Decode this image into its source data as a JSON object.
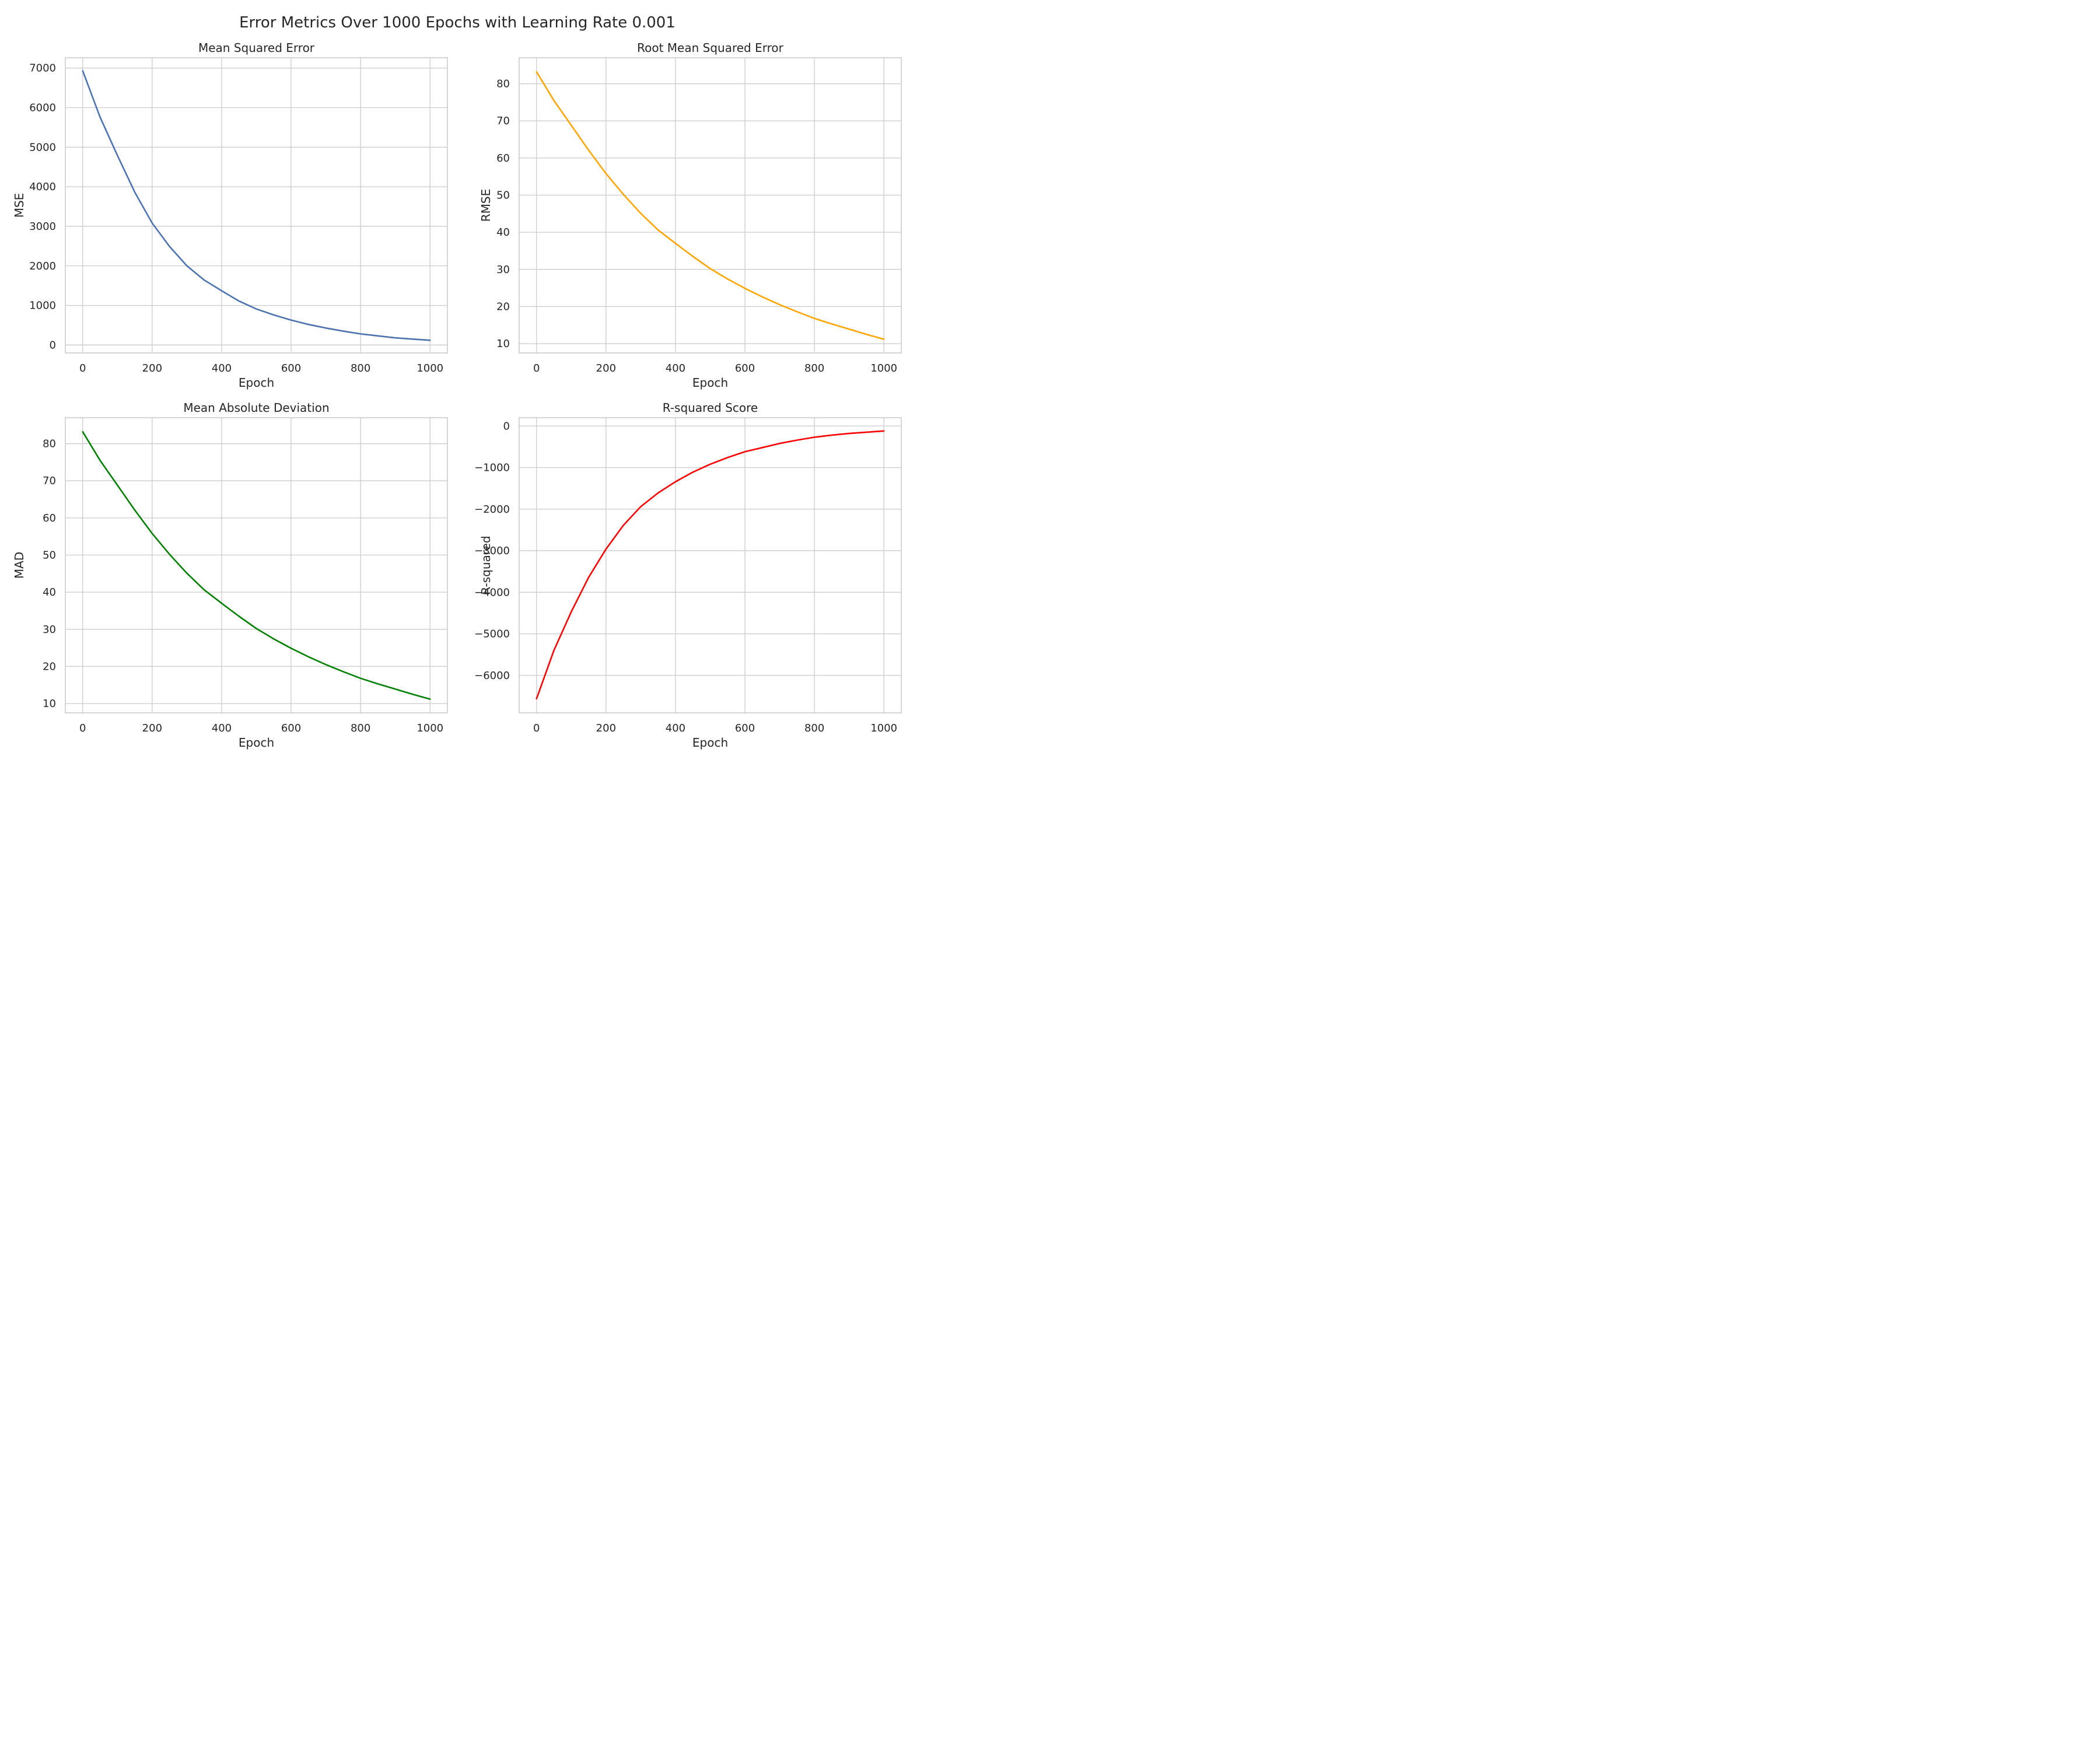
{
  "figure": {
    "title": "Error Metrics Over 1000 Epochs with Learning Rate 0.001"
  },
  "chart_data": [
    {
      "type": "line",
      "title": "Mean Squared Error",
      "xlabel": "Epoch",
      "ylabel": "MSE",
      "xlim": [
        -50,
        1050
      ],
      "ylim": [
        -200,
        7260
      ],
      "xticks": [
        0,
        200,
        400,
        600,
        800,
        1000
      ],
      "yticks": [
        0,
        1000,
        2000,
        3000,
        4000,
        5000,
        6000,
        7000
      ],
      "grid": true,
      "series": [
        {
          "color": "#4c72b0",
          "x": [
            0,
            50,
            100,
            150,
            200,
            250,
            300,
            350,
            400,
            450,
            500,
            550,
            600,
            650,
            700,
            750,
            800,
            850,
            900,
            950,
            1000
          ],
          "y": [
            6930,
            5760,
            4790,
            3860,
            3080,
            2490,
            2000,
            1640,
            1370,
            1110,
            910,
            760,
            630,
            520,
            430,
            350,
            280,
            230,
            180,
            150,
            120
          ]
        }
      ]
    },
    {
      "type": "line",
      "title": "Root Mean Squared Error",
      "xlabel": "Epoch",
      "ylabel": "RMSE",
      "xlim": [
        -50,
        1050
      ],
      "ylim": [
        7.5,
        87
      ],
      "xticks": [
        0,
        200,
        400,
        600,
        800,
        1000
      ],
      "yticks": [
        10,
        20,
        30,
        40,
        50,
        60,
        70,
        80
      ],
      "grid": true,
      "series": [
        {
          "color": "#ffa500",
          "x": [
            0,
            50,
            100,
            150,
            200,
            250,
            300,
            350,
            400,
            450,
            500,
            550,
            600,
            650,
            700,
            750,
            800,
            850,
            900,
            950,
            1000
          ],
          "y": [
            83.2,
            75.5,
            68.8,
            62.1,
            55.8,
            50.2,
            45.1,
            40.6,
            37.0,
            33.5,
            30.2,
            27.4,
            24.9,
            22.6,
            20.5,
            18.6,
            16.8,
            15.3,
            13.9,
            12.5,
            11.2
          ]
        }
      ]
    },
    {
      "type": "line",
      "title": "Mean Absolute Deviation",
      "xlabel": "Epoch",
      "ylabel": "MAD",
      "xlim": [
        -50,
        1050
      ],
      "ylim": [
        7.5,
        87
      ],
      "xticks": [
        0,
        200,
        400,
        600,
        800,
        1000
      ],
      "yticks": [
        10,
        20,
        30,
        40,
        50,
        60,
        70,
        80
      ],
      "grid": true,
      "series": [
        {
          "color": "#008000",
          "x": [
            0,
            50,
            100,
            150,
            200,
            250,
            300,
            350,
            400,
            450,
            500,
            550,
            600,
            650,
            700,
            750,
            800,
            850,
            900,
            950,
            1000
          ],
          "y": [
            83.2,
            75.5,
            68.8,
            62.1,
            55.8,
            50.2,
            45.1,
            40.6,
            37.0,
            33.5,
            30.2,
            27.4,
            24.9,
            22.6,
            20.5,
            18.6,
            16.8,
            15.3,
            13.9,
            12.5,
            11.2
          ]
        }
      ]
    },
    {
      "type": "line",
      "title": "R-squared Score",
      "xlabel": "Epoch",
      "ylabel": "R-squared",
      "xlim": [
        -50,
        1050
      ],
      "ylim": [
        -6900,
        200
      ],
      "xticks": [
        0,
        200,
        400,
        600,
        800,
        1000
      ],
      "yticks": [
        0,
        -1000,
        -2000,
        -3000,
        -4000,
        -5000,
        -6000
      ],
      "ytick_labels": [
        "0",
        "−1000",
        "−2000",
        "−3000",
        "−4000",
        "−5000",
        "−6000"
      ],
      "grid": true,
      "series": [
        {
          "color": "#ff0000",
          "x": [
            0,
            50,
            100,
            150,
            200,
            250,
            300,
            350,
            400,
            450,
            500,
            550,
            600,
            650,
            700,
            750,
            800,
            850,
            900,
            950,
            1000
          ],
          "y": [
            -6560,
            -5400,
            -4470,
            -3640,
            -2960,
            -2390,
            -1940,
            -1610,
            -1340,
            -1110,
            -920,
            -760,
            -620,
            -520,
            -420,
            -340,
            -270,
            -220,
            -180,
            -150,
            -120
          ]
        }
      ]
    }
  ]
}
